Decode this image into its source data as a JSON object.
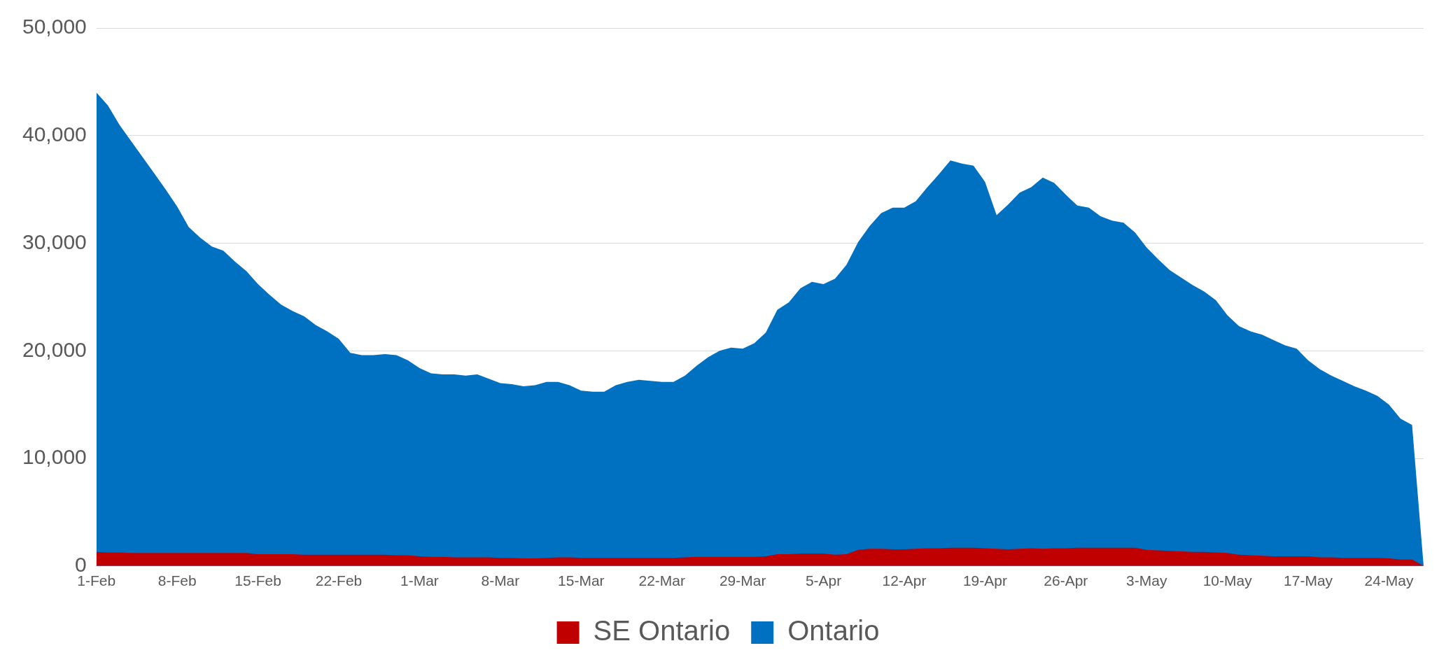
{
  "chart_data": {
    "type": "area",
    "categories": [
      "1-Feb",
      null,
      null,
      null,
      null,
      null,
      null,
      "8-Feb",
      null,
      null,
      null,
      null,
      null,
      null,
      "15-Feb",
      null,
      null,
      null,
      null,
      null,
      null,
      "22-Feb",
      null,
      null,
      null,
      null,
      null,
      null,
      "1-Mar",
      null,
      null,
      null,
      null,
      null,
      null,
      "8-Mar",
      null,
      null,
      null,
      null,
      null,
      null,
      "15-Mar",
      null,
      null,
      null,
      null,
      null,
      null,
      "22-Mar",
      null,
      null,
      null,
      null,
      null,
      null,
      "29-Mar",
      null,
      null,
      null,
      null,
      null,
      null,
      "5-Apr",
      null,
      null,
      null,
      null,
      null,
      null,
      "12-Apr",
      null,
      null,
      null,
      null,
      null,
      null,
      "19-Apr",
      null,
      null,
      null,
      null,
      null,
      null,
      "26-Apr",
      null,
      null,
      null,
      null,
      null,
      null,
      "3-May",
      null,
      null,
      null,
      null,
      null,
      null,
      "10-May",
      null,
      null,
      null,
      null,
      null,
      null,
      "17-May",
      null,
      null,
      null,
      null,
      null,
      null,
      "24-May",
      null,
      null,
      null
    ],
    "series": [
      {
        "name": "SE Ontario",
        "color": "#c00000",
        "values": [
          1300,
          1250,
          1250,
          1200,
          1200,
          1200,
          1200,
          1200,
          1200,
          1200,
          1200,
          1200,
          1200,
          1200,
          1100,
          1100,
          1100,
          1100,
          1050,
          1050,
          1050,
          1050,
          1050,
          1050,
          1050,
          1050,
          1000,
          1000,
          900,
          850,
          850,
          800,
          800,
          800,
          800,
          750,
          750,
          700,
          700,
          750,
          800,
          800,
          750,
          750,
          750,
          750,
          750,
          750,
          750,
          750,
          750,
          800,
          850,
          850,
          850,
          850,
          850,
          850,
          900,
          1100,
          1100,
          1150,
          1150,
          1150,
          1050,
          1100,
          1500,
          1600,
          1600,
          1550,
          1550,
          1600,
          1650,
          1650,
          1700,
          1700,
          1700,
          1650,
          1600,
          1550,
          1600,
          1650,
          1600,
          1650,
          1650,
          1700,
          1700,
          1700,
          1700,
          1700,
          1700,
          1500,
          1450,
          1400,
          1350,
          1300,
          1300,
          1250,
          1200,
          1050,
          1000,
          950,
          900,
          900,
          900,
          900,
          800,
          800,
          750,
          750,
          750,
          750,
          700,
          600,
          600,
          0
        ]
      },
      {
        "name": "Ontario",
        "color": "#0070c0",
        "values": [
          44000,
          42800,
          41000,
          39500,
          38000,
          36500,
          35000,
          33400,
          31500,
          30500,
          29700,
          29300,
          28300,
          27400,
          26200,
          25200,
          24300,
          23700,
          23200,
          22400,
          21800,
          21100,
          19800,
          19600,
          19600,
          19700,
          19600,
          19100,
          18400,
          17900,
          17800,
          17800,
          17700,
          17800,
          17400,
          17000,
          16900,
          16700,
          16800,
          17100,
          17100,
          16800,
          16300,
          16200,
          16200,
          16800,
          17100,
          17300,
          17200,
          17100,
          17100,
          17700,
          18600,
          19400,
          20000,
          20300,
          20200,
          20700,
          21700,
          23800,
          24500,
          25800,
          26400,
          26200,
          26700,
          28000,
          30100,
          31600,
          32800,
          33300,
          33300,
          33900,
          35200,
          36400,
          37700,
          37400,
          37200,
          35700,
          32600,
          33600,
          34700,
          35200,
          36100,
          35600,
          34500,
          33500,
          33300,
          32500,
          32100,
          31900,
          31000,
          29600,
          28500,
          27500,
          26800,
          26100,
          25500,
          24700,
          23300,
          22300,
          21800,
          21500,
          21000,
          20500,
          20200,
          19100,
          18300,
          17700,
          17200,
          16700,
          16300,
          15800,
          15000,
          13700,
          13100,
          0
        ]
      }
    ],
    "ylim": [
      0,
      50000
    ],
    "yticks": [
      {
        "value": 0,
        "label": "0"
      },
      {
        "value": 10000,
        "label": "10,000"
      },
      {
        "value": 20000,
        "label": "20,000"
      },
      {
        "value": 30000,
        "label": "30,000"
      },
      {
        "value": 40000,
        "label": "40,000"
      },
      {
        "value": 50000,
        "label": "50,000"
      }
    ],
    "grid": "y",
    "legend": "bottom"
  }
}
